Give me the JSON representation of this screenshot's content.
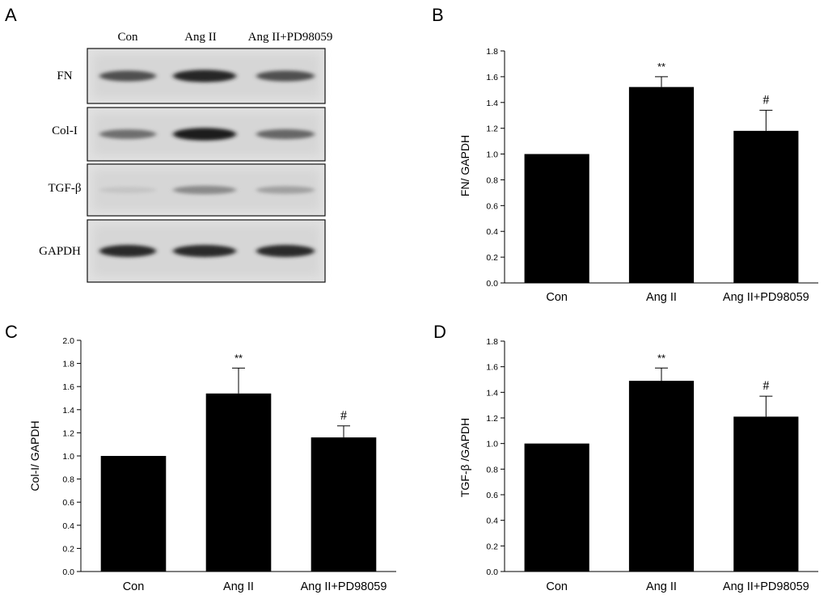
{
  "figure": {
    "panel_letters": [
      "A",
      "B",
      "C",
      "D"
    ]
  },
  "blot": {
    "lanes": [
      "Con",
      "Ang II",
      "Ang II+PD98059"
    ],
    "rows": [
      {
        "label": "FN",
        "intensity": [
          0.72,
          0.92,
          0.72
        ]
      },
      {
        "label": "Col-I",
        "intensity": [
          0.58,
          0.95,
          0.62
        ]
      },
      {
        "label": "TGF-β",
        "intensity": [
          0.18,
          0.45,
          0.35
        ]
      },
      {
        "label": "GAPDH",
        "intensity": [
          0.9,
          0.9,
          0.9
        ]
      }
    ]
  },
  "chart_data": [
    {
      "type": "bar",
      "panel": "B",
      "categories": [
        "Con",
        "Ang II",
        "Ang II+PD98059"
      ],
      "values": [
        1.0,
        1.52,
        1.18
      ],
      "errors": [
        0,
        0.08,
        0.16
      ],
      "annotations": [
        "",
        "**",
        "#"
      ],
      "ylabel": "FN/ GAPDH",
      "xlabel": "",
      "ylim": [
        0,
        1.8
      ],
      "yticks": [
        "0.0",
        "0.2",
        "0.4",
        "0.6",
        "0.8",
        "1.0",
        "1.2",
        "1.4",
        "1.6",
        "1.8"
      ],
      "bar_color": "#000000"
    },
    {
      "type": "bar",
      "panel": "C",
      "categories": [
        "Con",
        "Ang II",
        "Ang II+PD98059"
      ],
      "values": [
        1.0,
        1.54,
        1.16
      ],
      "errors": [
        0,
        0.22,
        0.1
      ],
      "annotations": [
        "",
        "**",
        "#"
      ],
      "ylabel": "Col-I/ GAPDH",
      "xlabel": "",
      "ylim": [
        0,
        2.0
      ],
      "yticks": [
        "0.0",
        "0.2",
        "0.4",
        "0.6",
        "0.8",
        "1.0",
        "1.2",
        "1.4",
        "1.6",
        "1.8",
        "2.0"
      ],
      "bar_color": "#000000"
    },
    {
      "type": "bar",
      "panel": "D",
      "categories": [
        "Con",
        "Ang II",
        "Ang II+PD98059"
      ],
      "values": [
        1.0,
        1.49,
        1.21
      ],
      "errors": [
        0,
        0.1,
        0.16
      ],
      "annotations": [
        "",
        "**",
        "#"
      ],
      "ylabel": "TGF-β /GAPDH",
      "xlabel": "",
      "ylim": [
        0,
        1.8
      ],
      "yticks": [
        "0.0",
        "0.2",
        "0.4",
        "0.6",
        "0.8",
        "1.0",
        "1.2",
        "1.4",
        "1.6",
        "1.8"
      ],
      "bar_color": "#000000"
    }
  ]
}
